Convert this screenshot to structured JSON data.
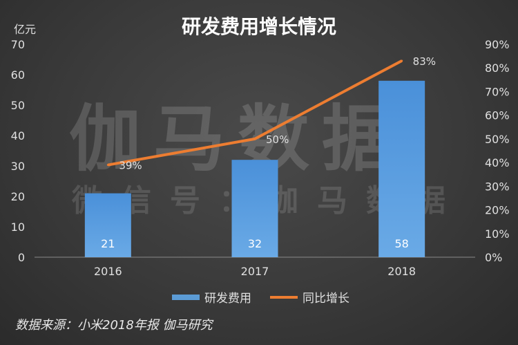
{
  "watermark": {
    "line1": "伽马数据",
    "line2": "微信号：伽马数据"
  },
  "source_note": "数据来源：小米2018年报  伽马研究",
  "colors": {
    "bar": "#5b9bd5",
    "line": "#ed7d31",
    "text": "#e0e0e0",
    "grid": "#8a8a8a"
  },
  "chart_data": {
    "type": "bar",
    "title": "研发费用增长情况",
    "unit_label": "亿元",
    "categories": [
      "2016",
      "2017",
      "2018"
    ],
    "ylim": [
      0,
      70
    ],
    "yticks": [
      0,
      10,
      20,
      30,
      40,
      50,
      60,
      70
    ],
    "y2lim": [
      0,
      90
    ],
    "y2ticks": [
      "0%",
      "10%",
      "20%",
      "30%",
      "40%",
      "50%",
      "60%",
      "70%",
      "80%",
      "90%"
    ],
    "grid": false,
    "legend_position": "bottom",
    "series": [
      {
        "name": "研发费用",
        "type": "bar",
        "axis": "left",
        "values": [
          21,
          32,
          58
        ],
        "labels": [
          "21",
          "32",
          "58"
        ]
      },
      {
        "name": "同比增长",
        "type": "line",
        "axis": "right",
        "values": [
          39,
          50,
          83
        ],
        "labels": [
          "39%",
          "50%",
          "83%"
        ]
      }
    ]
  }
}
